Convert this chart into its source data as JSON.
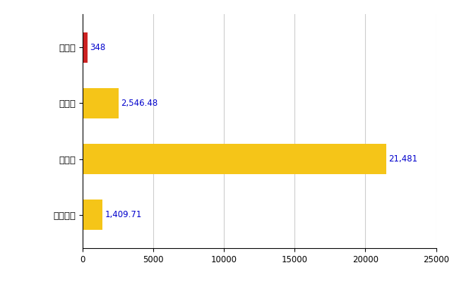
{
  "categories": [
    "世羅町",
    "県平均",
    "県最大",
    "全国平均"
  ],
  "values": [
    348,
    2546.48,
    21481,
    1409.71
  ],
  "bar_colors": [
    "#cc2222",
    "#f5c518",
    "#f5c518",
    "#f5c518"
  ],
  "labels": [
    "348",
    "2,546.48",
    "21,481",
    "1,409.71"
  ],
  "xlim": [
    0,
    25000
  ],
  "xticks": [
    0,
    5000,
    10000,
    15000,
    20000,
    25000
  ],
  "xtick_labels": [
    "0",
    "5000",
    "10000",
    "15000",
    "20000",
    "25000"
  ],
  "background_color": "#ffffff",
  "grid_color": "#cccccc",
  "label_color": "#0000cc",
  "label_fontsize": 8.5,
  "tick_fontsize": 8.5,
  "ytick_fontsize": 9.5,
  "bar_height": 0.55
}
